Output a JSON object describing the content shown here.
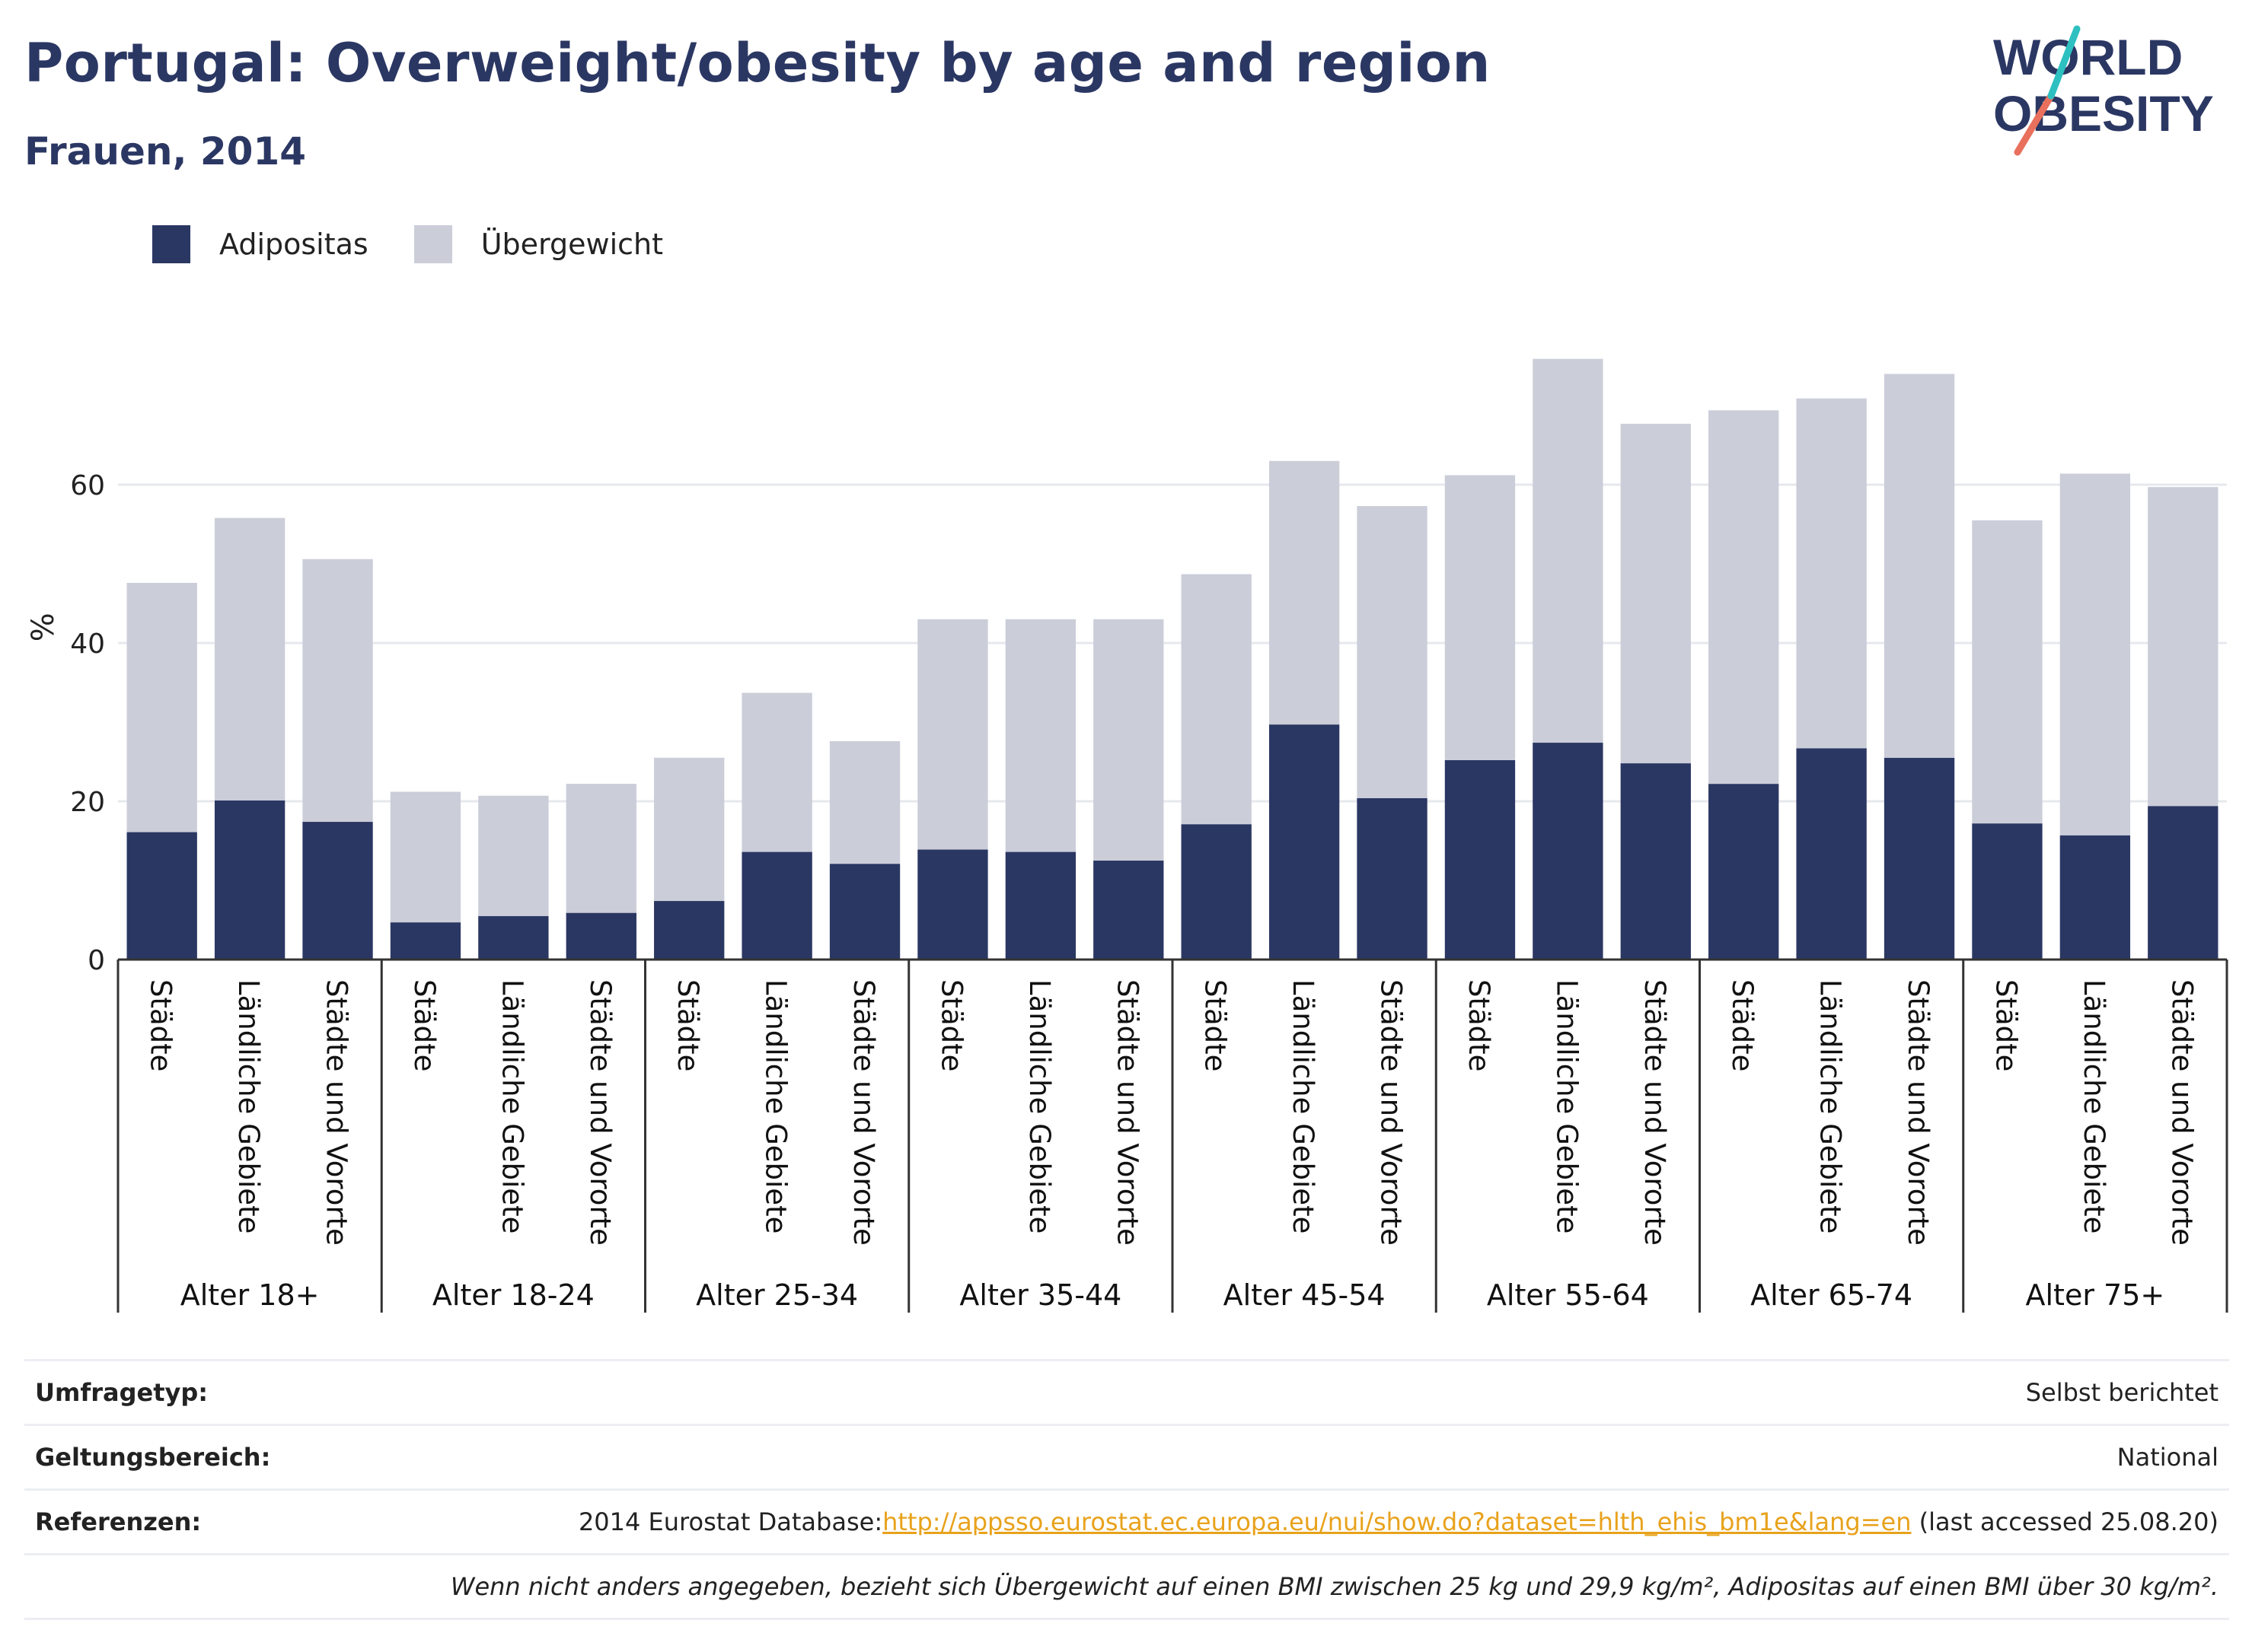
{
  "header": {
    "title": "Portugal: Overweight/obesity by age and region",
    "subtitle": "Frauen, 2014"
  },
  "logo": {
    "line1": "WORLD",
    "line2": "OBESITY"
  },
  "legend": [
    {
      "label": "Adipositas",
      "color": "#2b3763"
    },
    {
      "label": "Übergewicht",
      "color": "#cbcdd9"
    }
  ],
  "chart_data": {
    "type": "bar",
    "stacked": true,
    "ylabel": "%",
    "ylim": [
      0,
      80
    ],
    "yticks": [
      0,
      20,
      40,
      60
    ],
    "grid": true,
    "legend_position": "top-left",
    "subcategories": [
      "Städte",
      "Ländliche Gebiete",
      "Städte und Vororte"
    ],
    "groups": [
      "Alter 18+",
      "Alter 18-24",
      "Alter 25-34",
      "Alter 35-44",
      "Alter 45-54",
      "Alter 55-64",
      "Alter 65-74",
      "Alter 75+"
    ],
    "series": [
      {
        "name": "Adipositas",
        "color": "#2b3763",
        "values": [
          [
            16.1,
            20.1,
            17.4
          ],
          [
            4.7,
            5.5,
            5.9
          ],
          [
            7.4,
            13.6,
            12.1
          ],
          [
            13.9,
            13.6,
            12.5
          ],
          [
            17.1,
            29.7,
            20.4
          ],
          [
            25.2,
            27.4,
            24.8
          ],
          [
            22.2,
            26.7,
            25.5
          ],
          [
            17.2,
            15.7,
            19.4
          ]
        ]
      },
      {
        "name": "Übergewicht",
        "color": "#cbcdd9",
        "values": [
          [
            31.5,
            35.7,
            33.2
          ],
          [
            16.5,
            15.2,
            16.3
          ],
          [
            18.1,
            20.1,
            15.5
          ],
          [
            29.1,
            29.4,
            30.5
          ],
          [
            31.6,
            33.3,
            36.9
          ],
          [
            36.0,
            48.5,
            42.9
          ],
          [
            47.2,
            44.2,
            48.5
          ],
          [
            38.3,
            45.7,
            40.3
          ]
        ]
      }
    ]
  },
  "footer": {
    "rows": [
      {
        "label": "Umfragetyp:",
        "value": "Selbst berichtet"
      },
      {
        "label": "Geltungsbereich:",
        "value": "National"
      },
      {
        "label": "Referenzen:",
        "value_prefix": "2014 Eurostat Database:",
        "link": "http://appsso.eurostat.ec.europa.eu/nui/show.do?dataset=hlth_ehis_bm1e&lang=en",
        "value_suffix": " (last accessed 25.08.20)"
      }
    ],
    "note": "Wenn nicht anders angegeben, bezieht sich Übergewicht auf einen BMI zwischen 25 kg und 29,9 kg/m², Adipositas auf einen BMI über 30 kg/m²."
  }
}
